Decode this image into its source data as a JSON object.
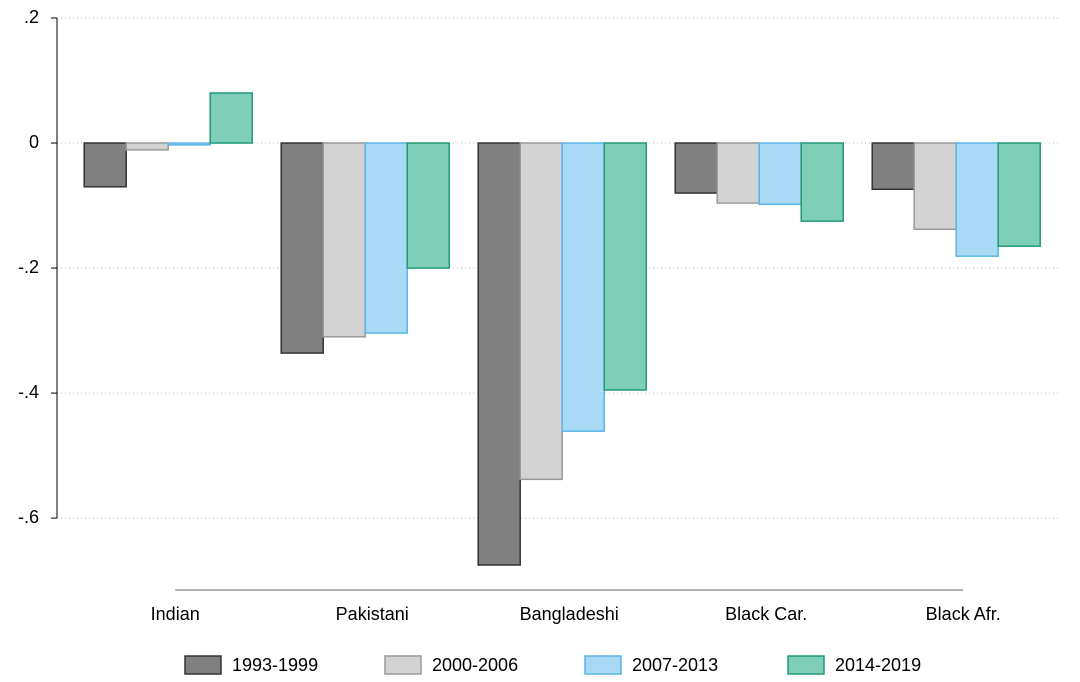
{
  "chart_data": {
    "type": "bar",
    "categories": [
      "Indian",
      "Pakistani",
      "Bangladeshi",
      "Black Car.",
      "Black Afr."
    ],
    "series": [
      {
        "name": "1993-1999",
        "color": "#808080",
        "values": [
          -0.07,
          -0.336,
          -0.675,
          -0.08,
          -0.074
        ]
      },
      {
        "name": "2000-2006",
        "color": "#d3d3d3",
        "values": [
          -0.011,
          -0.31,
          -0.538,
          -0.096,
          -0.138
        ]
      },
      {
        "name": "2007-2013",
        "color": "#a8daf5",
        "values": [
          -0.003,
          -0.304,
          -0.461,
          -0.098,
          -0.181
        ]
      },
      {
        "name": "2014-2019",
        "color": "#7fcfb8",
        "values": [
          0.08,
          -0.2,
          -0.395,
          -0.125,
          -0.165
        ]
      }
    ],
    "ylim": [
      -0.715,
      0.2
    ],
    "yticks": [
      {
        "value": 0.2,
        "label": ".2"
      },
      0,
      {
        "value": -0.2,
        "label": "-.2"
      },
      {
        "value": -0.4,
        "label": "-.4"
      },
      {
        "value": -0.6,
        "label": "-.6"
      }
    ],
    "grid": true,
    "legend": "bottom"
  }
}
